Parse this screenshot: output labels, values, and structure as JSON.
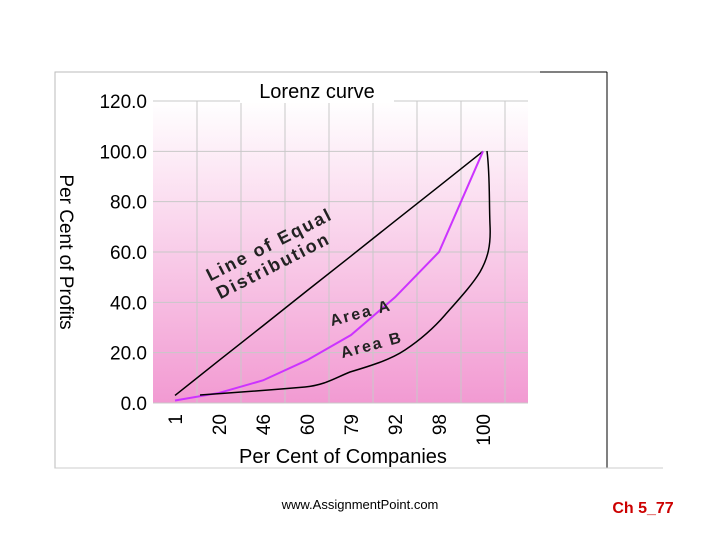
{
  "chart_data": {
    "type": "line",
    "title": "Lorenz curve",
    "x_label": "Per Cent of Companies",
    "y_label": "Per Cent of Profits",
    "categories": [
      "1",
      "20",
      "46",
      "60",
      "79",
      "92",
      "98",
      "100"
    ],
    "series": [
      {
        "color": "#000000",
        "values": [
          3,
          16.9,
          30.7,
          44.6,
          58.4,
          72.3,
          86.1,
          100
        ]
      },
      {
        "color": "#cc33ff",
        "values": [
          1,
          4,
          9,
          17,
          27,
          42,
          60,
          100
        ]
      }
    ],
    "ylim": [
      0,
      120
    ],
    "yticks": [
      {
        "value": 0,
        "label": "0.0"
      },
      {
        "value": 20,
        "label": "20.0"
      },
      {
        "value": 40,
        "label": "40.0"
      },
      {
        "value": 60,
        "label": "60.0"
      },
      {
        "value": 80,
        "label": "80.0"
      },
      {
        "value": 100,
        "label": "100.0"
      },
      {
        "value": 120,
        "label": "120.0"
      }
    ],
    "grid": true,
    "annotations": [
      "Line of Equal",
      "Distribution",
      "Area A",
      "Area B"
    ]
  },
  "footer": {
    "source": "www.AssignmentPoint.com",
    "slide": "Ch 5_77"
  }
}
